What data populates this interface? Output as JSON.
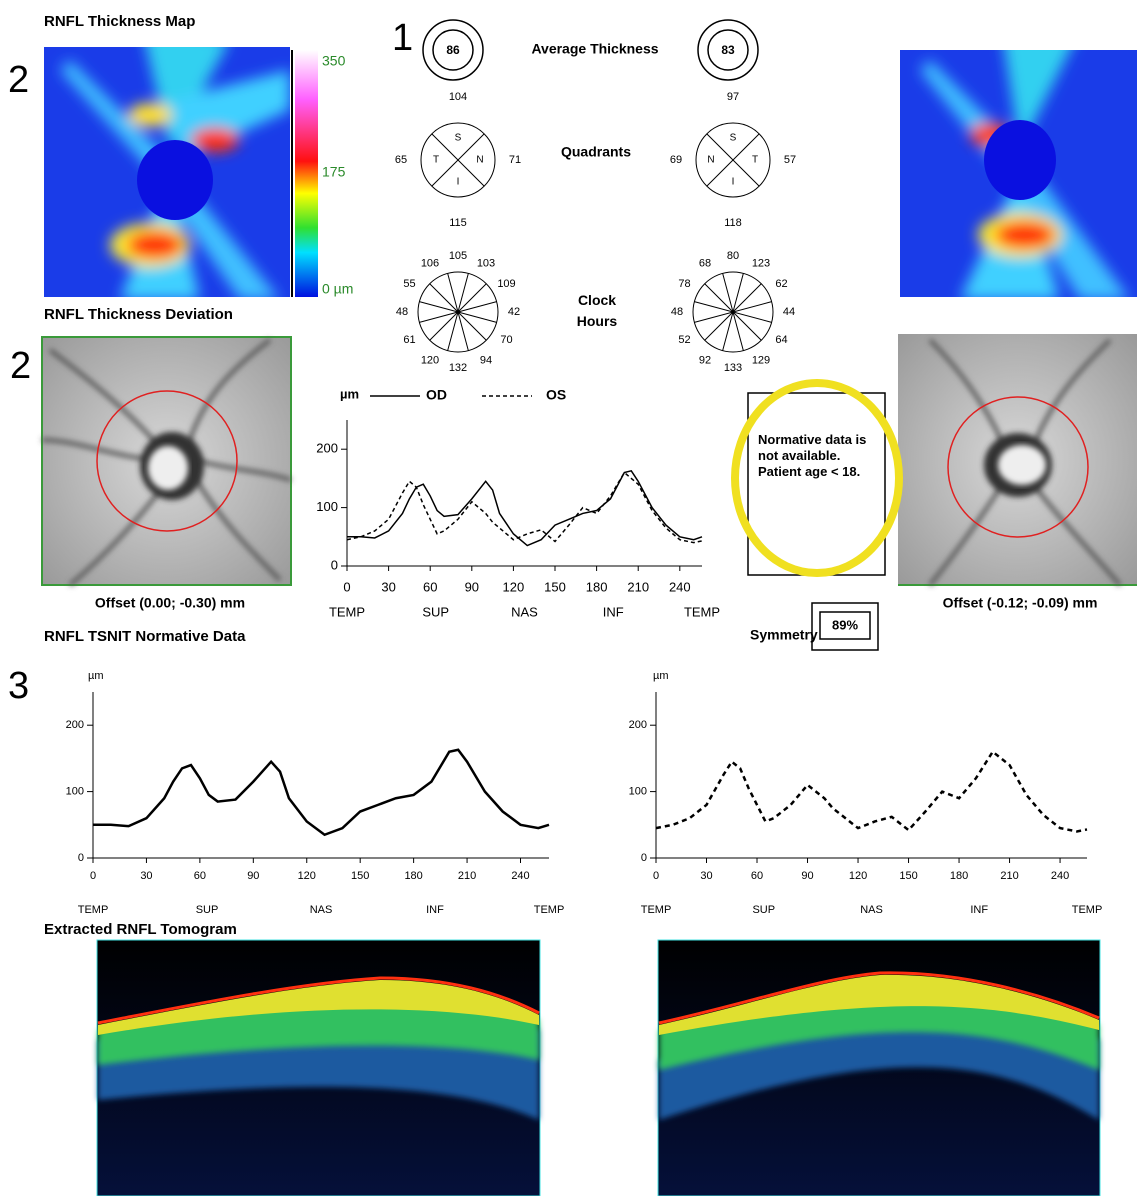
{
  "header": {
    "title": "RNFL Thickness Map",
    "deviation_title": "RNFL Thickness Deviation",
    "tsnit_title": "RNFL TSNIT Normative Data",
    "tomogram_title": "Extracted RNFL Tomogram"
  },
  "markers": [
    "1",
    "2",
    "2",
    "3"
  ],
  "color_scale": {
    "ticks": [
      "350",
      "175",
      "0 µm"
    ]
  },
  "average_thickness": {
    "title": "Average Thickness",
    "od": 86,
    "os": 83
  },
  "quadrants": {
    "title": "Quadrants",
    "od": [
      {
        "label": "S",
        "value": 104
      },
      {
        "label": "T",
        "value": 65
      },
      {
        "label": "N",
        "value": 71
      },
      {
        "label": "I",
        "value": 115
      }
    ],
    "os": [
      {
        "label": "S",
        "value": 97
      },
      {
        "label": "N",
        "value": 69
      },
      {
        "label": "T",
        "value": 57
      },
      {
        "label": "I",
        "value": 118
      }
    ]
  },
  "clock_hours": {
    "title": "Clock Hours",
    "od": [
      105,
      103,
      109,
      42,
      70,
      94,
      132,
      120,
      61,
      48,
      55,
      106
    ],
    "os": [
      80,
      123,
      62,
      44,
      64,
      129,
      133,
      92,
      52,
      48,
      78,
      68
    ]
  },
  "offsets": {
    "od": "Offset (0.00; -0.30) mm",
    "os": "Offset (-0.12; -0.09) mm"
  },
  "normative_note": "Normative data is not available. Patient age < 18.",
  "symmetry": {
    "label": "Symmetry",
    "value": "89%"
  },
  "chart_data": [
    {
      "type": "line",
      "y_label": "µm",
      "x": [
        0,
        10,
        20,
        30,
        40,
        45,
        50,
        55,
        60,
        65,
        70,
        80,
        90,
        100,
        105,
        110,
        120,
        130,
        140,
        150,
        160,
        170,
        180,
        190,
        200,
        205,
        210,
        220,
        230,
        240,
        250,
        256
      ],
      "series": [
        {
          "name": "OD",
          "color": "#000000",
          "dashed": false,
          "values": [
            50,
            50,
            48,
            60,
            90,
            115,
            135,
            140,
            120,
            95,
            85,
            88,
            115,
            145,
            130,
            90,
            55,
            35,
            45,
            70,
            80,
            90,
            95,
            115,
            160,
            163,
            145,
            100,
            70,
            50,
            45,
            50
          ]
        },
        {
          "name": "OS",
          "color": "#000000",
          "dashed": true,
          "values": [
            45,
            50,
            60,
            80,
            125,
            145,
            135,
            105,
            80,
            55,
            60,
            80,
            110,
            90,
            75,
            65,
            45,
            55,
            62,
            42,
            70,
            100,
            90,
            120,
            160,
            150,
            140,
            95,
            65,
            45,
            40,
            43
          ]
        }
      ],
      "xlim": [
        0,
        256
      ],
      "ylim": [
        0,
        250
      ],
      "xticks": [
        0,
        30,
        60,
        90,
        120,
        150,
        180,
        210,
        240
      ],
      "yticks": [
        0,
        100,
        200
      ],
      "region_labels": [
        "TEMP",
        "SUP",
        "NAS",
        "INF",
        "TEMP"
      ]
    },
    {
      "type": "line",
      "y_label": "µm",
      "x": [
        0,
        10,
        20,
        30,
        40,
        45,
        50,
        55,
        60,
        65,
        70,
        80,
        90,
        100,
        105,
        110,
        120,
        130,
        140,
        150,
        160,
        170,
        180,
        190,
        200,
        205,
        210,
        220,
        230,
        240,
        250,
        256
      ],
      "series": [
        {
          "color": "#000000",
          "dashed": false,
          "values": [
            50,
            50,
            48,
            60,
            90,
            115,
            135,
            140,
            120,
            95,
            85,
            88,
            115,
            145,
            130,
            90,
            55,
            35,
            45,
            70,
            80,
            90,
            95,
            115,
            160,
            163,
            145,
            100,
            70,
            50,
            45,
            50
          ]
        }
      ],
      "xlim": [
        0,
        256
      ],
      "ylim": [
        0,
        250
      ],
      "xticks": [
        0,
        30,
        60,
        90,
        120,
        150,
        180,
        210,
        240
      ],
      "yticks": [
        0,
        100,
        200
      ],
      "region_labels": [
        "TEMP",
        "SUP",
        "NAS",
        "INF",
        "TEMP"
      ]
    },
    {
      "type": "line",
      "y_label": "µm",
      "x": [
        0,
        10,
        20,
        30,
        40,
        45,
        50,
        55,
        60,
        65,
        70,
        80,
        90,
        100,
        105,
        110,
        120,
        130,
        140,
        150,
        160,
        170,
        180,
        190,
        200,
        205,
        210,
        220,
        230,
        240,
        250,
        256
      ],
      "series": [
        {
          "color": "#000000",
          "dashed": true,
          "values": [
            45,
            50,
            60,
            80,
            125,
            145,
            135,
            105,
            80,
            55,
            60,
            80,
            110,
            90,
            75,
            65,
            45,
            55,
            62,
            42,
            70,
            100,
            90,
            120,
            160,
            150,
            140,
            95,
            65,
            45,
            40,
            43
          ]
        }
      ],
      "xlim": [
        0,
        256
      ],
      "ylim": [
        0,
        250
      ],
      "xticks": [
        0,
        30,
        60,
        90,
        120,
        150,
        180,
        210,
        240
      ],
      "yticks": [
        0,
        100,
        200
      ],
      "region_labels": [
        "TEMP",
        "SUP",
        "NAS",
        "INF",
        "TEMP"
      ]
    }
  ]
}
